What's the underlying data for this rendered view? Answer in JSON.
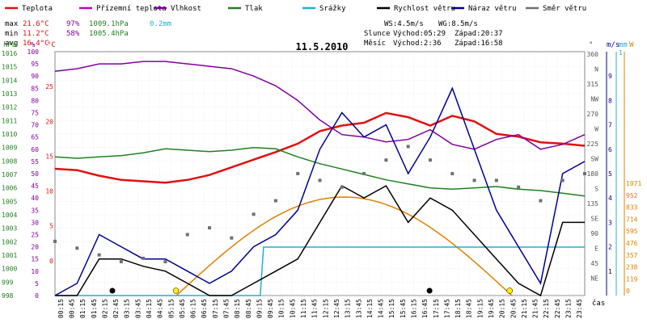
{
  "chart_data": {
    "type": "line",
    "title": "11.5.2010",
    "legend": [
      {
        "label": "Teplota",
        "color": "#e01010"
      },
      {
        "label": "Přízemní teplota",
        "color": "#c000c0"
      },
      {
        "label": "Vlhkost",
        "color": "#8000a0"
      },
      {
        "label": "Tlak",
        "color": "#208020"
      },
      {
        "label": "Srážky",
        "color": "#20b0d0"
      },
      {
        "label": "Rychlost větru",
        "color": "#000000"
      },
      {
        "label": "Náraz větru",
        "color": "#000090"
      },
      {
        "label": "Směr větru",
        "color": "#707070"
      }
    ],
    "stats": {
      "max": {
        "label": "max",
        "temp": "21.6°C",
        "hum": "97%",
        "press": "1009.1hPa",
        "rain": "0.2mm"
      },
      "min": {
        "label": "min",
        "temp": "11.2°C",
        "hum": "58%",
        "press": "1005.4hPa"
      },
      "avg": {
        "label": "avg",
        "temp": "16.4°C"
      }
    },
    "wind": {
      "ws": "WS:4.5m/s",
      "wg": "WG:8.5m/s"
    },
    "sun": {
      "label": "Slunce",
      "rise": "Východ:05:29",
      "set": "Západ:20:37"
    },
    "moon": {
      "label": "Měsíc",
      "rise": "Východ:2:36",
      "set": "Západ:16:58"
    },
    "axes": {
      "hpa": {
        "unit": "hPa",
        "ticks": [
          "1016",
          "1015",
          "1014",
          "1013",
          "1012",
          "1011",
          "1010",
          "1009",
          "1008",
          "1007",
          "1006",
          "1005",
          "1004",
          "1003",
          "1002",
          "1001",
          "1000",
          "999",
          "998"
        ]
      },
      "pct": {
        "unit": "%",
        "ticks": [
          "100",
          "95",
          "90",
          "85",
          "80",
          "75",
          "70",
          "65",
          "60",
          "55",
          "50",
          "45",
          "40",
          "35",
          "30",
          "25",
          "20",
          "15",
          "10",
          "5",
          "0"
        ]
      },
      "temp": {
        "unit": "°C",
        "ticks": [
          "25",
          "20",
          "15",
          "10",
          "5",
          "0"
        ]
      },
      "dir": {
        "unit": "°",
        "ticks": [
          "360",
          "N",
          "315",
          "NW",
          "270",
          "W",
          "225",
          "SW",
          "180",
          "S",
          "135",
          "SE",
          "90",
          "E",
          "45",
          "NE"
        ]
      },
      "ms": {
        "unit": "m/s",
        "ticks": [
          "1",
          "2",
          "3",
          "4",
          "5",
          "6",
          "7",
          "8",
          "9"
        ]
      },
      "mm": {
        "unit": "mm",
        "ticks": [
          "1"
        ]
      },
      "w": {
        "unit": "W",
        "ticks": [
          "1071",
          "952",
          "833",
          "714",
          "595",
          "476",
          "357",
          "238",
          "119",
          "0"
        ]
      },
      "time_label": "čas",
      "x_ticks": [
        "00:15",
        "00:45",
        "01:15",
        "01:45",
        "02:15",
        "02:45",
        "03:15",
        "03:45",
        "04:15",
        "04:45",
        "05:15",
        "05:45",
        "06:15",
        "06:45",
        "07:15",
        "07:45",
        "08:15",
        "08:45",
        "09:15",
        "09:45",
        "10:15",
        "10:45",
        "11:15",
        "11:45",
        "12:15",
        "12:45",
        "13:15",
        "13:45",
        "14:15",
        "14:45",
        "15:15",
        "15:45",
        "16:15",
        "16:45",
        "17:15",
        "17:45",
        "18:15",
        "18:45",
        "19:15",
        "19:45",
        "20:15",
        "20:45",
        "21:15",
        "21:45",
        "22:15",
        "22:45",
        "23:15",
        "23:45"
      ]
    },
    "series": [
      {
        "name": "Teplota",
        "color": "#e01010",
        "unit": "°C",
        "x": [
          0,
          1,
          2,
          3,
          4,
          5,
          6,
          7,
          8,
          9,
          10,
          11,
          12,
          13,
          14,
          15,
          16,
          17,
          18,
          19,
          20,
          21,
          22,
          23,
          24
        ],
        "y": [
          13.2,
          13.0,
          12.2,
          11.6,
          11.4,
          11.2,
          11.6,
          12.3,
          13.4,
          14.5,
          15.6,
          16.8,
          18.6,
          19.4,
          19.8,
          21.2,
          20.6,
          19.4,
          20.8,
          20.0,
          18.2,
          17.8,
          17.0,
          16.8,
          16.5
        ]
      },
      {
        "name": "Vlhkost",
        "color": "#8000a0",
        "unit": "%",
        "x": [
          0,
          1,
          2,
          3,
          4,
          5,
          6,
          7,
          8,
          9,
          10,
          11,
          12,
          13,
          14,
          15,
          16,
          17,
          18,
          19,
          20,
          21,
          22,
          23,
          24
        ],
        "y": [
          92,
          93,
          95,
          95,
          96,
          96,
          95,
          94,
          93,
          90,
          86,
          80,
          72,
          66,
          65,
          63,
          64,
          68,
          62,
          60,
          64,
          66,
          60,
          62,
          66
        ]
      },
      {
        "name": "Tlak",
        "color": "#208020",
        "unit": "hPa",
        "x": [
          0,
          1,
          2,
          3,
          4,
          5,
          6,
          7,
          8,
          9,
          10,
          11,
          12,
          13,
          14,
          15,
          16,
          17,
          18,
          19,
          20,
          21,
          22,
          23,
          24
        ],
        "y": [
          1008.3,
          1008.2,
          1008.3,
          1008.4,
          1008.6,
          1008.9,
          1008.8,
          1008.7,
          1008.8,
          1009.0,
          1008.9,
          1008.3,
          1007.8,
          1007.4,
          1007.0,
          1006.6,
          1006.3,
          1006.0,
          1005.9,
          1006.0,
          1006.1,
          1005.9,
          1005.8,
          1005.6,
          1005.4
        ]
      },
      {
        "name": "Srážky",
        "color": "#20b0d0",
        "unit": "mm",
        "x": [
          0,
          9.3,
          9.45,
          24
        ],
        "y": [
          0,
          0,
          0.2,
          0.2
        ]
      },
      {
        "name": "Rychlost větru",
        "color": "#000000",
        "unit": "m/s",
        "x": [
          0,
          1,
          2,
          3,
          4,
          5,
          6,
          7,
          8,
          9,
          10,
          11,
          12,
          13,
          14,
          15,
          16,
          17,
          18,
          19,
          20,
          21,
          22,
          23,
          24
        ],
        "y": [
          0,
          0,
          1.5,
          1.5,
          1.2,
          1.0,
          0.5,
          0,
          0,
          0.5,
          1.0,
          1.5,
          3,
          4.5,
          4,
          4.5,
          3,
          4,
          3.5,
          2.5,
          1.5,
          0.5,
          0,
          3,
          3
        ]
      },
      {
        "name": "Náraz větru",
        "color": "#000090",
        "unit": "m/s",
        "x": [
          0,
          1,
          2,
          3,
          4,
          5,
          6,
          7,
          8,
          9,
          10,
          11,
          12,
          13,
          14,
          15,
          16,
          17,
          18,
          19,
          20,
          21,
          22,
          23,
          24
        ],
        "y": [
          0,
          0.5,
          2.5,
          2,
          1.5,
          1.5,
          1,
          0.5,
          1,
          2,
          2.5,
          3.5,
          6,
          7.5,
          6.5,
          7,
          5,
          6.5,
          8.5,
          6,
          3.5,
          2,
          0.5,
          5,
          5.5
        ]
      },
      {
        "name": "Směr větru",
        "color": "#707070",
        "unit": "°",
        "x": [
          0,
          1,
          2,
          3,
          4,
          5,
          6,
          7,
          8,
          9,
          10,
          11,
          12,
          13,
          14,
          15,
          16,
          17,
          18,
          19,
          20,
          21,
          22,
          23,
          24
        ],
        "y": [
          80,
          70,
          60,
          50,
          55,
          50,
          90,
          100,
          85,
          120,
          140,
          180,
          170,
          160,
          180,
          200,
          220,
          200,
          180,
          170,
          170,
          160,
          140,
          170,
          180
        ]
      }
    ]
  }
}
